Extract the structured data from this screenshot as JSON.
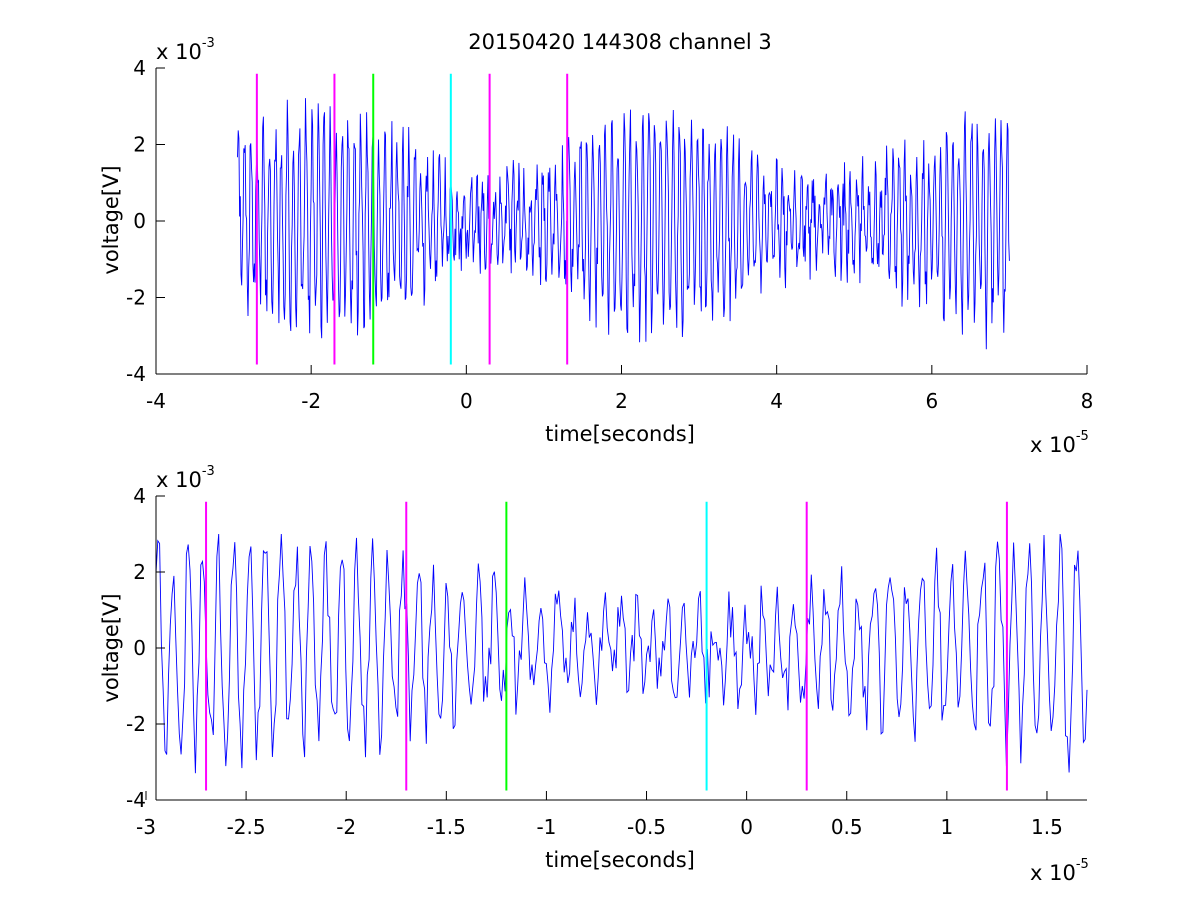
{
  "title": "20150420 144308 channel 3",
  "colors": {
    "trace": "#0000ff",
    "magenta": "#ff00ff",
    "green": "#00ff00",
    "cyan": "#00ffff",
    "axes": "#000000"
  },
  "chart_data": [
    {
      "type": "line",
      "title": "20150420 144308 channel 3",
      "xlabel": "time[seconds]",
      "ylabel": "voltage[V]",
      "x_multiplier": "x 10",
      "x_exponent": "-5",
      "y_multiplier": "x 10",
      "y_exponent": "-3",
      "xlim": [
        -4,
        8
      ],
      "ylim": [
        -4,
        4
      ],
      "xticks": [
        -4,
        -2,
        0,
        2,
        4,
        6,
        8
      ],
      "xticklabels": [
        "-4",
        "-2",
        "0",
        "2",
        "4",
        "6",
        "8"
      ],
      "yticks": [
        -4,
        -2,
        0,
        2,
        4
      ],
      "yticklabels": [
        "-4",
        "-2",
        "0",
        "2",
        "4"
      ],
      "grid": false,
      "trace_x_range": [
        -2.95,
        7.0
      ],
      "trace_envelope": [
        -3.4,
        3.5
      ],
      "markers": [
        {
          "x": -2.7,
          "color": "magenta"
        },
        {
          "x": -1.7,
          "color": "magenta"
        },
        {
          "x": -1.2,
          "color": "green"
        },
        {
          "x": -0.2,
          "color": "cyan"
        },
        {
          "x": 0.3,
          "color": "magenta"
        },
        {
          "x": 1.3,
          "color": "magenta"
        }
      ],
      "marker_y_range": [
        -3.75,
        3.85
      ]
    },
    {
      "type": "line",
      "xlabel": "time[seconds]",
      "ylabel": "voltage[V]",
      "x_multiplier": "x 10",
      "x_exponent": "-5",
      "y_multiplier": "x 10",
      "y_exponent": "-3",
      "xlim": [
        -2.95,
        1.7
      ],
      "ylim": [
        -4,
        4
      ],
      "xticks": [
        -3,
        -2.5,
        -2,
        -1.5,
        -1,
        -0.5,
        0,
        0.5,
        1,
        1.5
      ],
      "xticklabels": [
        "-3",
        "-2.5",
        "-2",
        "-1.5",
        "-1",
        "-0.5",
        "0",
        "0.5",
        "1",
        "1.5"
      ],
      "yticks": [
        -4,
        -2,
        0,
        2,
        4
      ],
      "yticklabels": [
        "-4",
        "-2",
        "0",
        "2",
        "4"
      ],
      "grid": false,
      "trace_x_range": [
        -2.95,
        1.7
      ],
      "trace_envelope": [
        -3.4,
        3.0
      ],
      "markers": [
        {
          "x": -2.7,
          "color": "magenta"
        },
        {
          "x": -1.7,
          "color": "magenta"
        },
        {
          "x": -1.2,
          "color": "green"
        },
        {
          "x": -0.2,
          "color": "cyan"
        },
        {
          "x": 0.3,
          "color": "magenta"
        },
        {
          "x": 1.3,
          "color": "magenta"
        }
      ],
      "marker_y_range": [
        -3.75,
        3.85
      ]
    }
  ]
}
